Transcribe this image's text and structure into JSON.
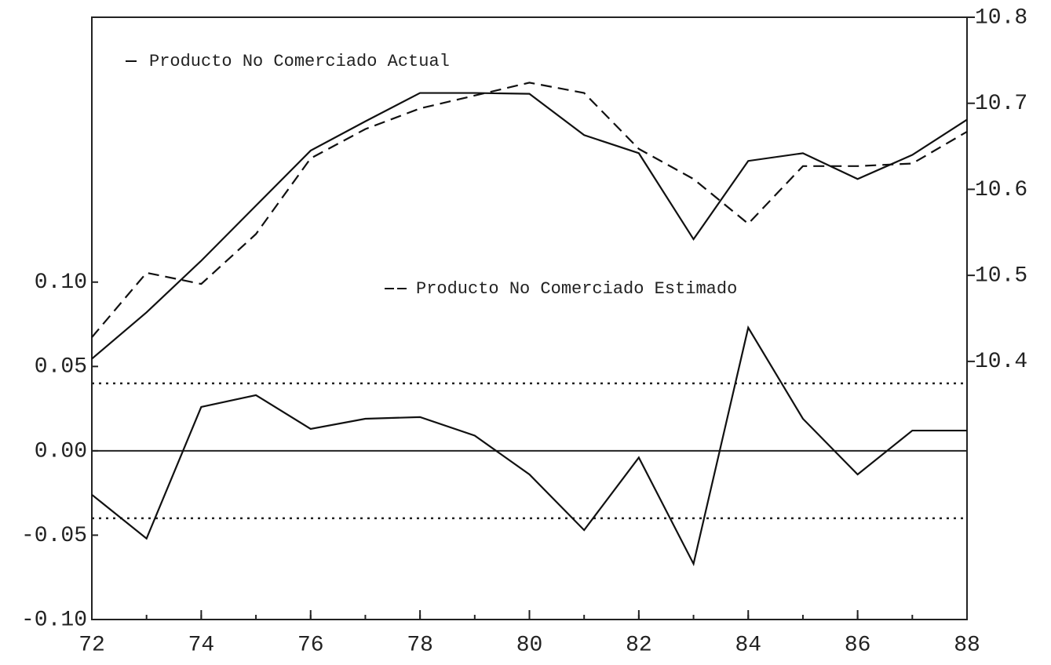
{
  "chart_data": {
    "type": "line",
    "x": [
      72,
      73,
      74,
      75,
      76,
      77,
      78,
      79,
      80,
      81,
      82,
      83,
      84,
      85,
      86,
      87,
      88
    ],
    "xlim": [
      72,
      88
    ],
    "xticks": [
      72,
      74,
      76,
      78,
      80,
      82,
      84,
      86,
      88
    ],
    "ylim": [
      -0.1,
      0.257
    ],
    "yticks": [
      {
        "value": -0.1,
        "label": "-0.10"
      },
      {
        "value": -0.05,
        "label": "-0.05"
      },
      {
        "value": 0,
        "label": "0.00"
      },
      {
        "value": 0.05,
        "label": "0.05"
      },
      {
        "value": 0.1,
        "label": "0.10"
      }
    ],
    "y2lim": [
      10.1,
      10.8
    ],
    "y2ticks": [
      10.4,
      10.5,
      10.6,
      10.7,
      10.8
    ],
    "reference_lines": [
      {
        "value": 0,
        "style": "solid"
      },
      {
        "value": 0.04,
        "style": "dotted"
      },
      {
        "value": -0.04,
        "style": "dotted"
      }
    ],
    "series": [
      {
        "name": "Producto No Comerciado Actual",
        "color": "#111",
        "style": "solid",
        "axis": "y2",
        "values": [
          10.403,
          10.457,
          10.517,
          10.581,
          10.645,
          10.679,
          10.712,
          10.712,
          10.711,
          10.663,
          10.642,
          10.542,
          10.633,
          10.642,
          10.612,
          10.64,
          10.681
        ]
      },
      {
        "name": "Producto No Comerciado Estimado",
        "color": "#111",
        "style": "dashed",
        "axis": "y2",
        "values": [
          10.428,
          10.503,
          10.49,
          10.548,
          10.636,
          10.67,
          10.694,
          10.709,
          10.724,
          10.712,
          10.647,
          10.612,
          10.56,
          10.627,
          10.627,
          10.63,
          10.667
        ]
      },
      {
        "color": "#111",
        "style": "solid",
        "axis": "y",
        "values": [
          -0.026,
          -0.052,
          0.026,
          0.033,
          0.013,
          0.019,
          0.02,
          0.009,
          -0.014,
          -0.047,
          -0.004,
          -0.067,
          0.073,
          0.019,
          -0.014,
          0.012,
          0.012
        ]
      }
    ]
  }
}
